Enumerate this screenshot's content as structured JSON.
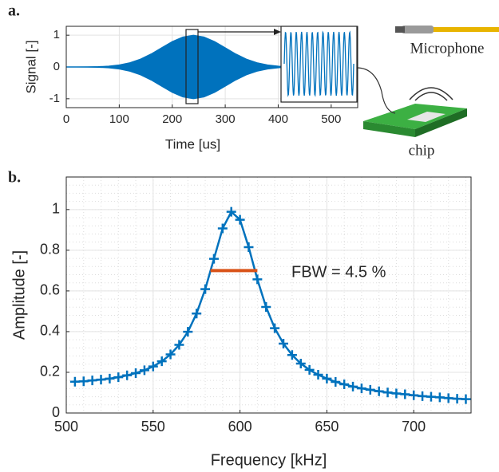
{
  "chart_data": [
    {
      "type": "envelope",
      "panel_label": "a.",
      "xlabel": "Time [us]",
      "ylabel": "Signal [-]",
      "x": [
        0,
        20,
        40,
        60,
        80,
        100,
        120,
        140,
        160,
        180,
        200,
        220,
        240,
        260,
        280,
        300,
        320,
        340,
        360,
        380,
        400,
        420,
        440,
        460,
        480,
        500,
        520,
        540
      ],
      "values": [
        0,
        0,
        0.004,
        0.011,
        0.029,
        0.066,
        0.135,
        0.249,
        0.411,
        0.607,
        0.801,
        0.946,
        1,
        0.946,
        0.801,
        0.607,
        0.411,
        0.249,
        0.135,
        0.066,
        0.029,
        0,
        0,
        0,
        0,
        0,
        0,
        0
      ],
      "color": "#0072bd",
      "xlim": [
        0,
        550
      ],
      "ylim": [
        -1.28,
        1.28
      ],
      "xticks": [
        0,
        100,
        200,
        300,
        400,
        500
      ],
      "yticks": [
        -1,
        0,
        1
      ],
      "grid": true,
      "annotations": [
        "Microphone",
        "chip"
      ]
    },
    {
      "type": "line",
      "panel_label": "b.",
      "xlabel": "Frequency [kHz]",
      "ylabel": "Amplitude [-]",
      "x": [
        505,
        510,
        515,
        520,
        525,
        530,
        535,
        540,
        545,
        550,
        555,
        560,
        565,
        570,
        575,
        580,
        585,
        590,
        595,
        600,
        605,
        610,
        615,
        620,
        625,
        630,
        635,
        640,
        645,
        650,
        655,
        660,
        665,
        670,
        675,
        680,
        685,
        690,
        695,
        700,
        705,
        710,
        715,
        720,
        725,
        730
      ],
      "values": [
        0.154,
        0.156,
        0.16,
        0.164,
        0.169,
        0.176,
        0.185,
        0.196,
        0.21,
        0.229,
        0.254,
        0.288,
        0.335,
        0.399,
        0.489,
        0.609,
        0.758,
        0.907,
        0.989,
        0.95,
        0.815,
        0.657,
        0.521,
        0.417,
        0.341,
        0.285,
        0.243,
        0.212,
        0.188,
        0.169,
        0.153,
        0.141,
        0.13,
        0.121,
        0.114,
        0.107,
        0.101,
        0.096,
        0.092,
        0.087,
        0.083,
        0.08,
        0.077,
        0.073,
        0.07,
        0.068
      ],
      "color": "#0072bd",
      "xlim": [
        500,
        733
      ],
      "ylim": [
        0,
        1.16
      ],
      "xticks": [
        500,
        550,
        600,
        650,
        700
      ],
      "yticks": [
        0,
        0.2,
        0.4,
        0.6,
        0.8,
        1
      ],
      "grid": true,
      "minor_grid": true,
      "fbw": {
        "x": [
          583,
          610
        ],
        "y": 0.7,
        "color": "#d95319",
        "label": "FBW = 4.5 %"
      }
    }
  ]
}
